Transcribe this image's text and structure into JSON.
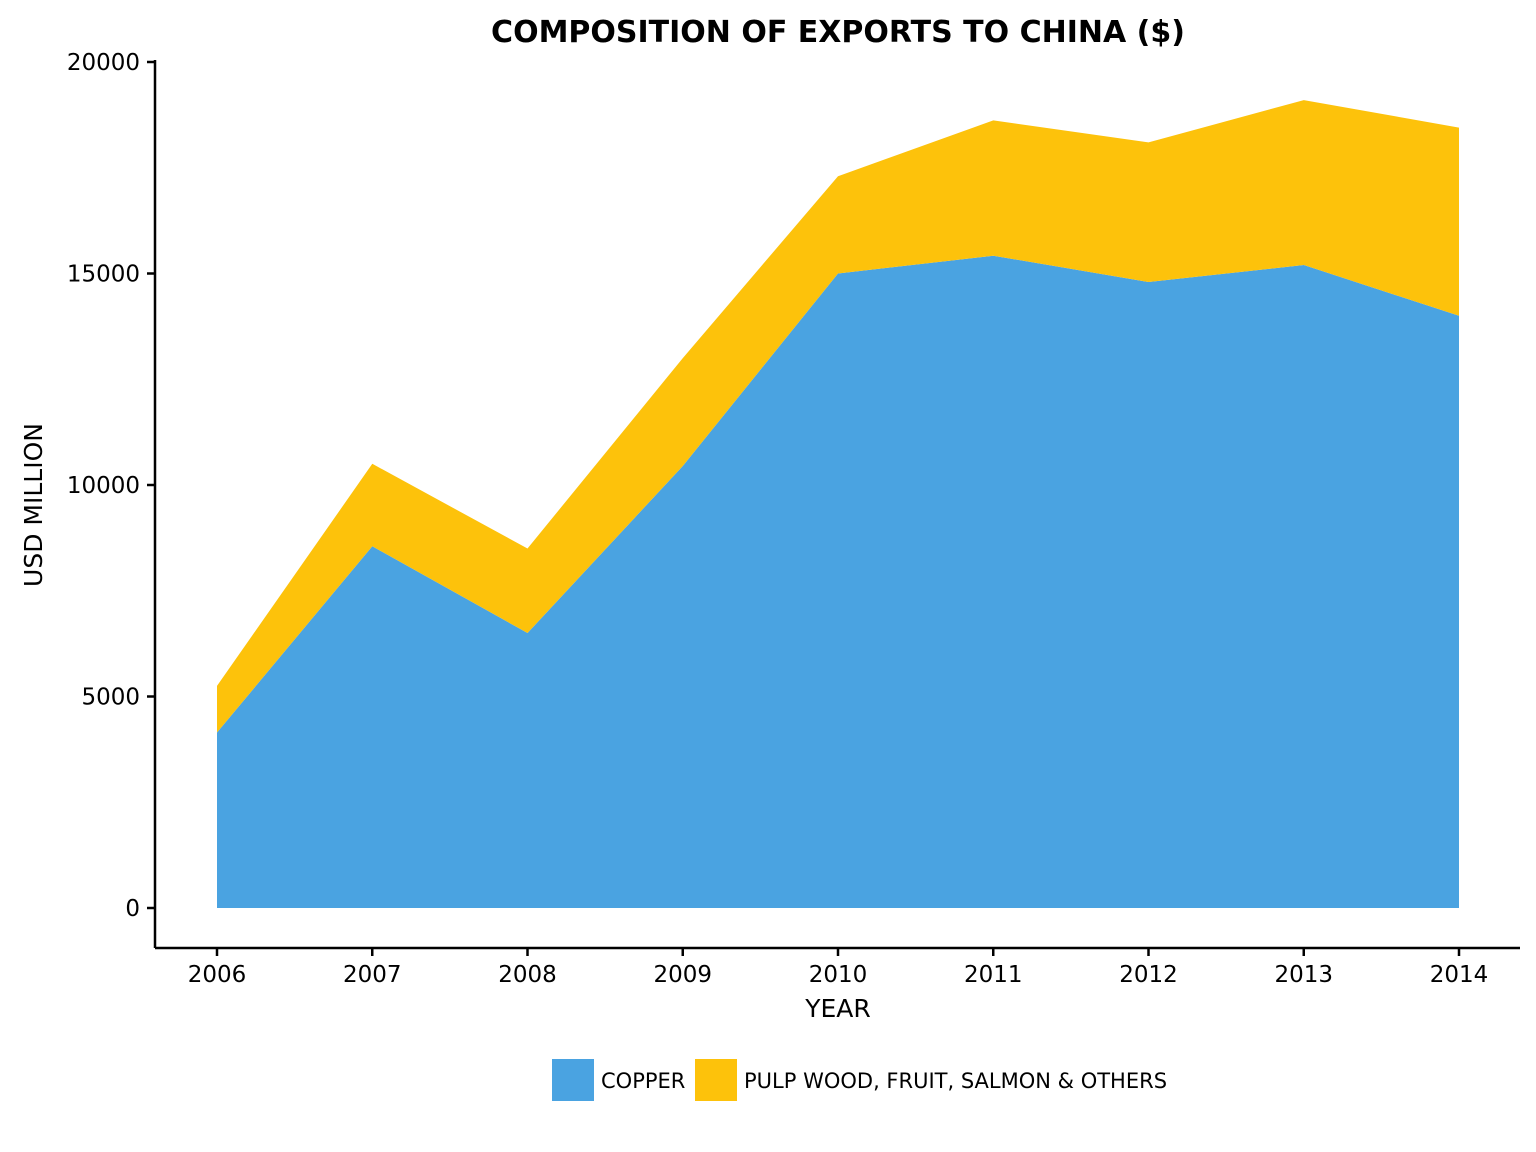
{
  "chart_data": {
    "type": "area",
    "stacked": true,
    "title": "COMPOSITION OF EXPORTS TO CHINA ($)",
    "xlabel": "YEAR",
    "ylabel": "USD MILLION",
    "x": [
      "2006",
      "2007",
      "2008",
      "2009",
      "2010",
      "2011",
      "2012",
      "2013",
      "2014"
    ],
    "ylim": [
      0,
      20000
    ],
    "yticks": [
      "0",
      "5000",
      "10000",
      "15000",
      "20000"
    ],
    "grid": false,
    "legend_position": "bottom",
    "series": [
      {
        "name": "COPPER",
        "color": "#4AA3E1",
        "values": [
          4150,
          8550,
          6500,
          10450,
          15000,
          15420,
          14800,
          15200,
          14000
        ]
      },
      {
        "name": "PULP WOOD, FRUIT, SALMON & OTHERS",
        "color": "#FDC20B",
        "values": [
          1100,
          1950,
          2000,
          2550,
          2300,
          3200,
          3300,
          3900,
          4450
        ]
      }
    ]
  }
}
